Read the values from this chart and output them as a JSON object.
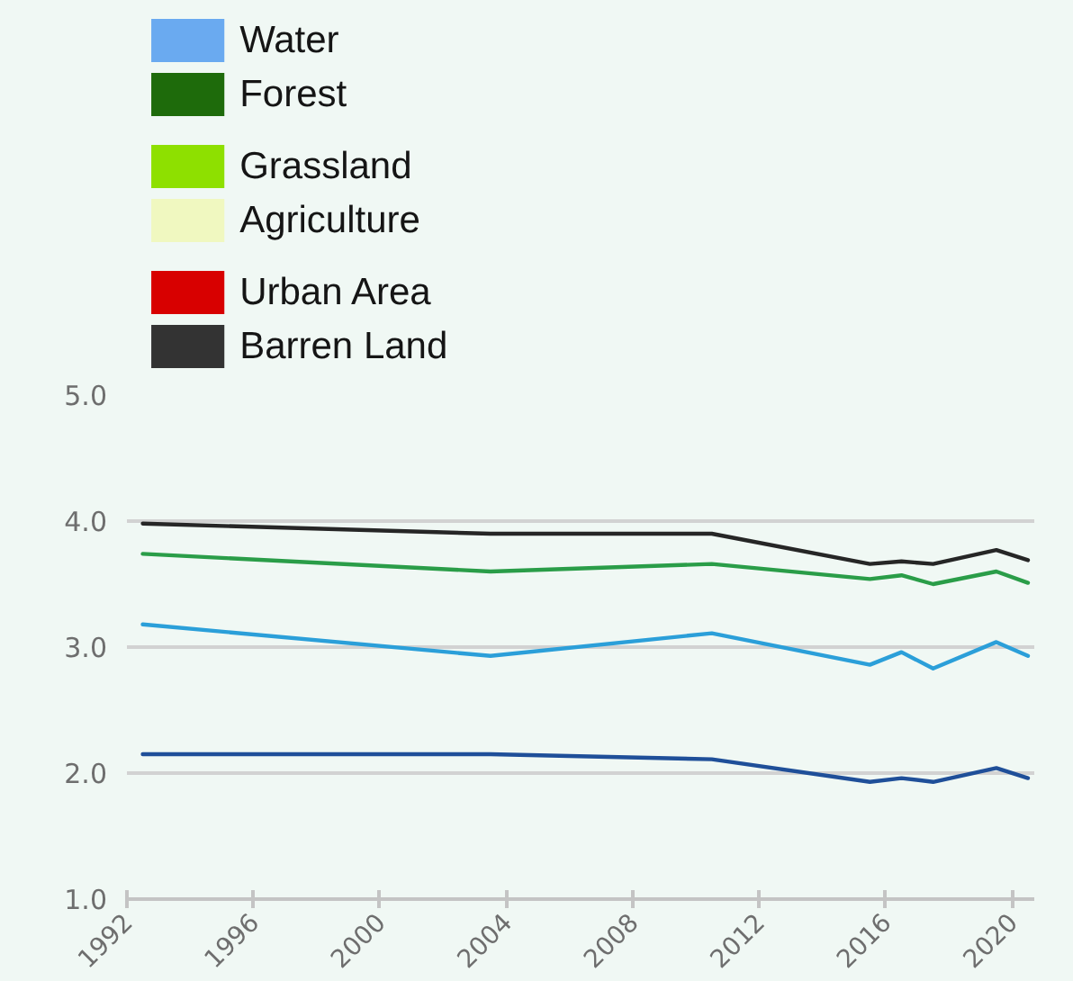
{
  "chart_data": [
    {
      "type": "other",
      "categories": [
        "Water",
        "Forest",
        "Grassland",
        "Agriculture",
        "Urban Area",
        "Barren Land"
      ],
      "colors": [
        "#6aaaf0",
        "#1e6b0b",
        "#8ee000",
        "#f0f8c0",
        "#d80000",
        "#333333"
      ]
    },
    {
      "type": "line",
      "x": [
        1992.5,
        2003.5,
        2010.5,
        2015.5,
        2016.5,
        2017.5,
        2019.5,
        2020.5
      ],
      "series": [
        {
          "color": "#262626",
          "values": [
            3.98,
            3.9,
            3.9,
            3.66,
            3.68,
            3.66,
            3.77,
            3.69
          ]
        },
        {
          "color": "#2a9d48",
          "values": [
            3.74,
            3.6,
            3.66,
            3.54,
            3.57,
            3.5,
            3.6,
            3.51
          ]
        },
        {
          "color": "#2b9fd9",
          "values": [
            3.18,
            2.93,
            3.11,
            2.86,
            2.96,
            2.83,
            3.04,
            2.93
          ]
        },
        {
          "color": "#1f4f99",
          "values": [
            2.15,
            2.15,
            2.11,
            1.93,
            1.96,
            1.93,
            2.04,
            1.96
          ]
        }
      ],
      "xlim": [
        1992,
        2020.7
      ],
      "xticks": [
        1992,
        1996,
        2000,
        2004,
        2008,
        2012,
        2016,
        2020
      ],
      "ylim": [
        1,
        5
      ],
      "yticks": [
        {
          "value": 1,
          "label": "1.0"
        },
        {
          "value": 2,
          "label": "2.0"
        },
        {
          "value": 3,
          "label": "3.0"
        },
        {
          "value": 4,
          "label": "4.0"
        },
        {
          "value": 5,
          "label": "5.0"
        }
      ],
      "grid": "y"
    }
  ]
}
